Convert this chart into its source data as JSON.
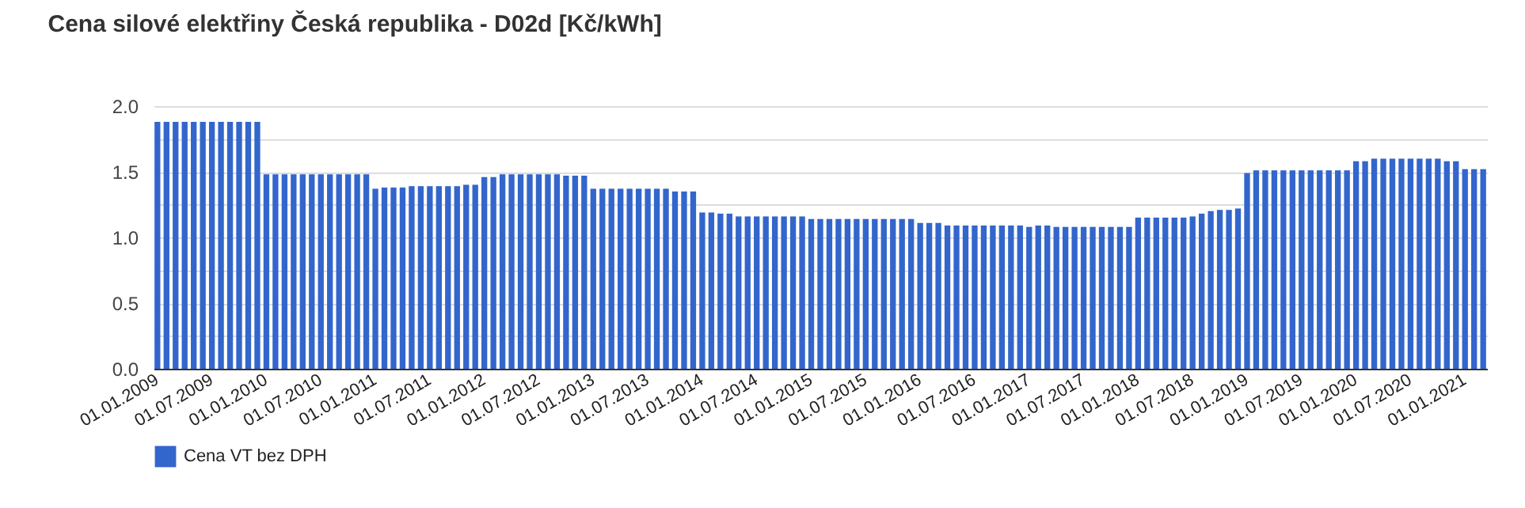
{
  "chart_data": {
    "type": "bar",
    "title": "Cena silové elektřiny Česká republika - D02d [Kč/kWh]",
    "categories": [
      "01.01.2009",
      null,
      null,
      null,
      null,
      null,
      "01.07.2009",
      null,
      null,
      null,
      null,
      null,
      "01.01.2010",
      null,
      null,
      null,
      null,
      null,
      "01.07.2010",
      null,
      null,
      null,
      null,
      null,
      "01.01.2011",
      null,
      null,
      null,
      null,
      null,
      "01.07.2011",
      null,
      null,
      null,
      null,
      null,
      "01.01.2012",
      null,
      null,
      null,
      null,
      null,
      "01.07.2012",
      null,
      null,
      null,
      null,
      null,
      "01.01.2013",
      null,
      null,
      null,
      null,
      null,
      "01.07.2013",
      null,
      null,
      null,
      null,
      null,
      "01.01.2014",
      null,
      null,
      null,
      null,
      null,
      "01.07.2014",
      null,
      null,
      null,
      null,
      null,
      "01.01.2015",
      null,
      null,
      null,
      null,
      null,
      "01.07.2015",
      null,
      null,
      null,
      null,
      null,
      "01.01.2016",
      null,
      null,
      null,
      null,
      null,
      "01.07.2016",
      null,
      null,
      null,
      null,
      null,
      "01.01.2017",
      null,
      null,
      null,
      null,
      null,
      "01.07.2017",
      null,
      null,
      null,
      null,
      null,
      "01.01.2018",
      null,
      null,
      null,
      null,
      null,
      "01.07.2018",
      null,
      null,
      null,
      null,
      null,
      "01.01.2019",
      null,
      null,
      null,
      null,
      null,
      "01.07.2019",
      null,
      null,
      null,
      null,
      null,
      "01.01.2020",
      null,
      null,
      null,
      null,
      null,
      "01.07.2020",
      null,
      null,
      null,
      null,
      null,
      "01.01.2021",
      null,
      null
    ],
    "series": [
      {
        "name": "Cena VT bez DPH",
        "color": "#3366cc",
        "values": [
          1.88,
          1.88,
          1.88,
          1.88,
          1.88,
          1.88,
          1.88,
          1.88,
          1.88,
          1.88,
          1.88,
          1.88,
          1.48,
          1.48,
          1.48,
          1.48,
          1.48,
          1.48,
          1.48,
          1.48,
          1.48,
          1.48,
          1.48,
          1.48,
          1.37,
          1.38,
          1.38,
          1.38,
          1.39,
          1.39,
          1.39,
          1.39,
          1.39,
          1.39,
          1.4,
          1.4,
          1.46,
          1.46,
          1.48,
          1.48,
          1.48,
          1.48,
          1.48,
          1.48,
          1.48,
          1.47,
          1.47,
          1.47,
          1.37,
          1.37,
          1.37,
          1.37,
          1.37,
          1.37,
          1.37,
          1.37,
          1.37,
          1.35,
          1.35,
          1.35,
          1.19,
          1.19,
          1.18,
          1.18,
          1.16,
          1.16,
          1.16,
          1.16,
          1.16,
          1.16,
          1.16,
          1.16,
          1.14,
          1.14,
          1.14,
          1.14,
          1.14,
          1.14,
          1.14,
          1.14,
          1.14,
          1.14,
          1.14,
          1.14,
          1.11,
          1.11,
          1.11,
          1.09,
          1.09,
          1.09,
          1.09,
          1.09,
          1.09,
          1.09,
          1.09,
          1.09,
          1.08,
          1.09,
          1.09,
          1.08,
          1.08,
          1.08,
          1.08,
          1.08,
          1.08,
          1.08,
          1.08,
          1.08,
          1.15,
          1.15,
          1.15,
          1.15,
          1.15,
          1.15,
          1.16,
          1.18,
          1.2,
          1.21,
          1.21,
          1.22,
          1.49,
          1.51,
          1.51,
          1.51,
          1.51,
          1.51,
          1.51,
          1.51,
          1.51,
          1.51,
          1.51,
          1.51,
          1.58,
          1.58,
          1.6,
          1.6,
          1.6,
          1.6,
          1.6,
          1.6,
          1.6,
          1.6,
          1.58,
          1.58,
          1.52,
          1.52,
          1.52
        ]
      }
    ],
    "ylim": [
      0,
      2.0
    ],
    "yticks": [
      {
        "value": 0,
        "label": "0.0"
      },
      {
        "value": 0.25,
        "label": null
      },
      {
        "value": 0.5,
        "label": "0.5"
      },
      {
        "value": 0.75,
        "label": null
      },
      {
        "value": 1.0,
        "label": "1.0"
      },
      {
        "value": 1.25,
        "label": null
      },
      {
        "value": 1.5,
        "label": "1.5"
      },
      {
        "value": 1.75,
        "label": null
      },
      {
        "value": 2.0,
        "label": "2.0"
      }
    ],
    "grid": true,
    "legend": "bottom"
  }
}
